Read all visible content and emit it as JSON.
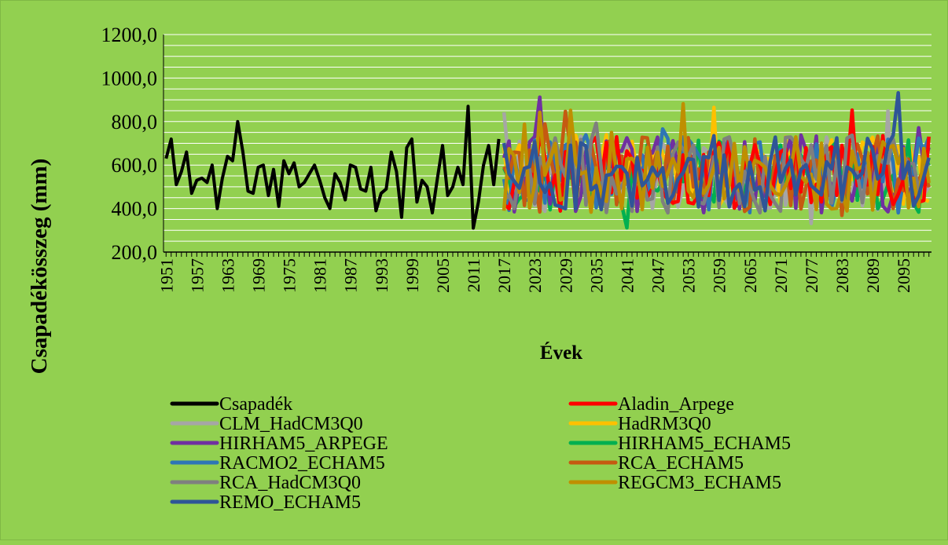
{
  "colors": {
    "background": "#92d050",
    "gridline": "#ffffff",
    "axis": "#000000"
  },
  "chart_data": {
    "type": "line",
    "title": "",
    "xlabel": "Évek",
    "ylabel": "Csapadékösszeg (mm)",
    "ylim": [
      200,
      1200
    ],
    "xlim": [
      1951,
      2100
    ],
    "y_ticks": [
      "200,0",
      "400,0",
      "600,0",
      "800,0",
      "1000,0",
      "1200,0"
    ],
    "x_ticks": [
      1951,
      1957,
      1963,
      1969,
      1975,
      1981,
      1987,
      1993,
      1999,
      2005,
      2011,
      2017,
      2023,
      2029,
      2035,
      2041,
      2047,
      2053,
      2059,
      2065,
      2071,
      2077,
      2083,
      2089,
      2095
    ],
    "grid": true,
    "legend_position": "bottom",
    "series": [
      {
        "name": "Csapadék",
        "color": "#000000",
        "x_start": 1951,
        "x_end": 2016,
        "values": [
          630,
          720,
          510,
          570,
          660,
          470,
          530,
          540,
          520,
          600,
          400,
          540,
          640,
          620,
          800,
          660,
          480,
          470,
          590,
          600,
          460,
          580,
          410,
          620,
          560,
          610,
          500,
          520,
          560,
          600,
          530,
          450,
          400,
          560,
          520,
          440,
          600,
          590,
          490,
          480,
          590,
          390,
          470,
          490,
          660,
          570,
          360,
          680,
          720,
          430,
          530,
          500,
          380,
          540,
          690,
          460,
          500,
          590,
          510,
          870,
          310,
          430,
          600,
          690,
          510,
          720
        ]
      },
      {
        "name": "Aladin_Arpege",
        "color": "#ff0000",
        "x_start": 2017,
        "x_end": 2100
      },
      {
        "name": "CLM_HadCM3Q0",
        "color": "#a6a6a6",
        "x_start": 2017,
        "x_end": 2100
      },
      {
        "name": "HadRM3Q0",
        "color": "#ffc000",
        "x_start": 2017,
        "x_end": 2100
      },
      {
        "name": "HIRHAM5_ARPEGE",
        "color": "#7030a0",
        "x_start": 2017,
        "x_end": 2100
      },
      {
        "name": "HIRHAM5_ECHAM5",
        "color": "#00b050",
        "x_start": 2017,
        "x_end": 2100
      },
      {
        "name": "RACMO2_ECHAM5",
        "color": "#2e75b6",
        "x_start": 2017,
        "x_end": 2100
      },
      {
        "name": "RCA_ECHAM5",
        "color": "#c55a11",
        "x_start": 2017,
        "x_end": 2100
      },
      {
        "name": "RCA_HadCM3Q0",
        "color": "#7f7f7f",
        "x_start": 2017,
        "x_end": 2100
      },
      {
        "name": "REGCM3_ECHAM5",
        "color": "#bf8f00",
        "x_start": 2017,
        "x_end": 2100
      },
      {
        "name": "REMO_ECHAM5",
        "color": "#2f5597",
        "x_start": 2017,
        "x_end": 2100
      }
    ]
  }
}
